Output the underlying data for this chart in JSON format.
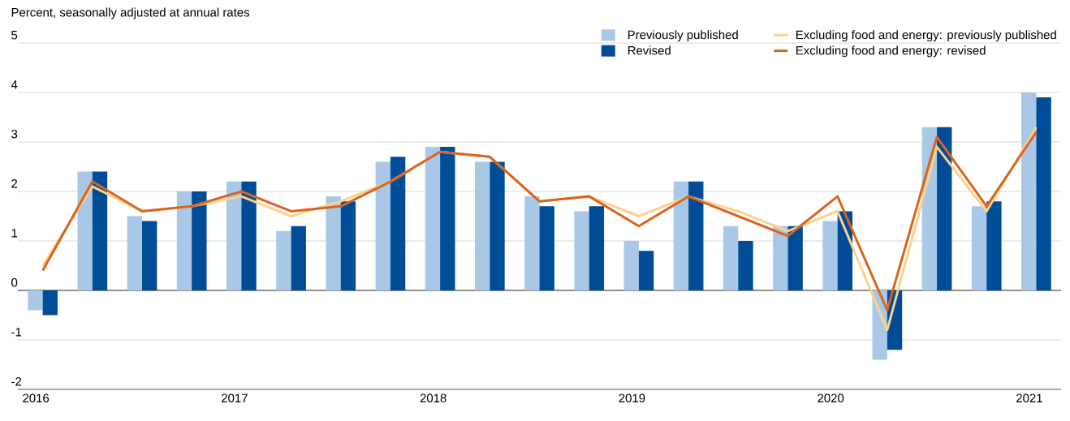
{
  "chart_data": {
    "type": "bar",
    "ylabel": "Percent, seasonally adjusted at annual rates",
    "categories": [
      "2016",
      null,
      null,
      null,
      "2017",
      null,
      null,
      null,
      "2018",
      null,
      null,
      null,
      "2019",
      null,
      null,
      null,
      "2020",
      null,
      null,
      null,
      "2021"
    ],
    "series": [
      {
        "name": "Previously published",
        "color": "#a9c8e8",
        "values": [
          -0.4,
          2.4,
          1.5,
          2.0,
          2.2,
          1.2,
          1.9,
          2.6,
          2.9,
          2.6,
          1.9,
          1.6,
          1.0,
          2.2,
          1.3,
          1.3,
          1.4,
          -1.4,
          3.3,
          1.7,
          4.0
        ]
      },
      {
        "name": "Revised",
        "color": "#004c97",
        "values": [
          -0.5,
          2.4,
          1.4,
          2.0,
          2.2,
          1.3,
          1.8,
          2.7,
          2.9,
          2.6,
          1.7,
          1.7,
          0.8,
          2.2,
          1.0,
          1.3,
          1.6,
          -1.2,
          3.3,
          1.8,
          3.9
        ]
      },
      {
        "name": "Excluding food and energy: previously published",
        "type": "line",
        "color": "#fdd28a",
        "values": [
          0.5,
          2.1,
          1.6,
          1.7,
          1.9,
          1.5,
          1.8,
          2.2,
          2.8,
          2.7,
          1.8,
          1.9,
          1.5,
          1.9,
          1.6,
          1.2,
          1.6,
          -0.8,
          2.9,
          1.6,
          3.3
        ]
      },
      {
        "name": "Excluding food and energy: revised",
        "type": "line",
        "color": "#d9641e",
        "values": [
          0.4,
          2.2,
          1.6,
          1.7,
          2.0,
          1.6,
          1.7,
          2.2,
          2.8,
          2.7,
          1.8,
          1.9,
          1.3,
          1.9,
          1.5,
          1.1,
          1.9,
          -0.4,
          3.1,
          1.7,
          3.2
        ]
      }
    ],
    "ylim": [
      -2,
      5
    ],
    "yticks": [
      -2,
      -1,
      0,
      1,
      2,
      3,
      4,
      5
    ],
    "grid": "y",
    "legend": "top right"
  }
}
